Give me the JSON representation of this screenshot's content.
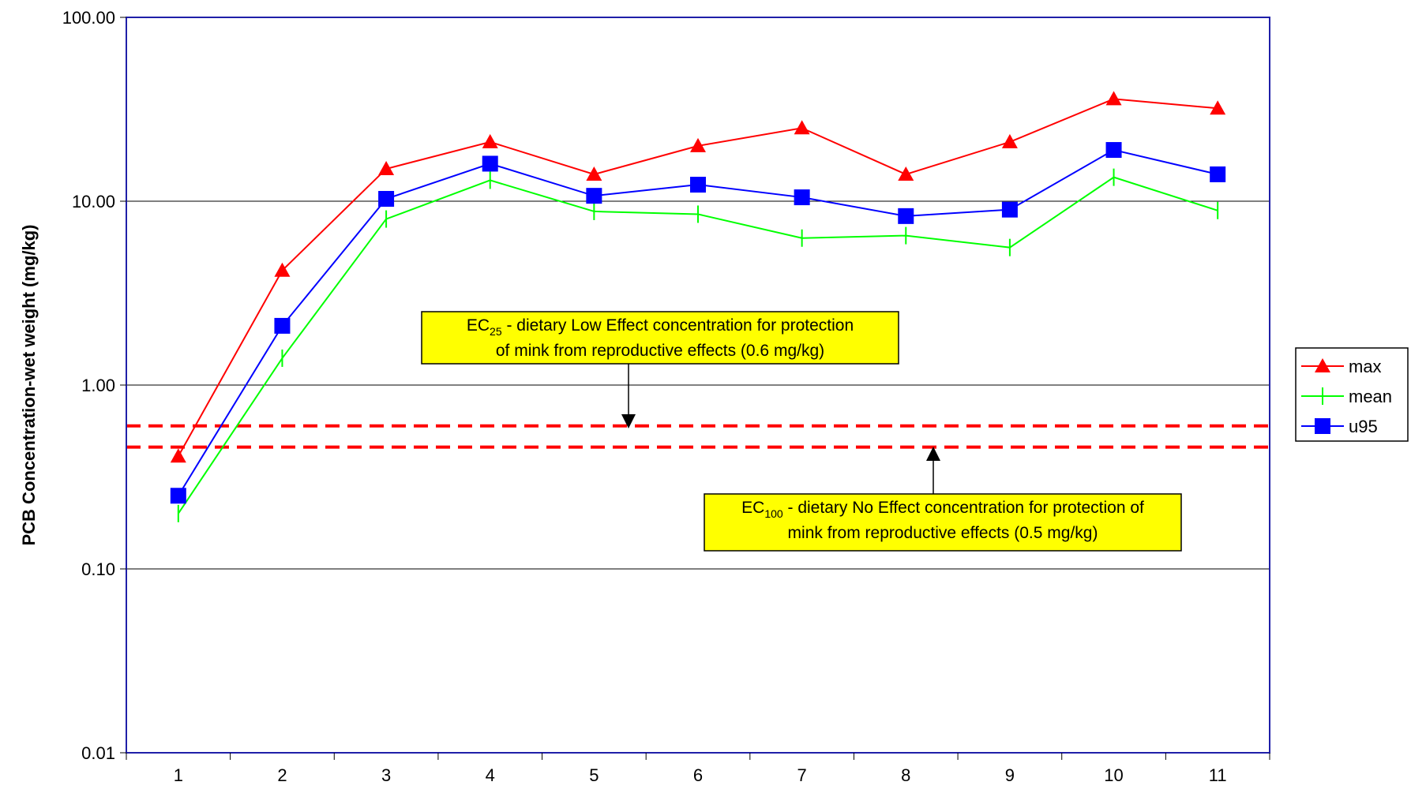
{
  "chart_data": {
    "type": "line",
    "title": "",
    "xlabel": "",
    "ylabel": "PCB Concentration-wet weight (mg/kg)",
    "y_scale": "log",
    "ylim": [
      0.01,
      100
    ],
    "y_ticks": [
      {
        "value": 0.01,
        "label": "0.01"
      },
      {
        "value": 0.1,
        "label": "0.10"
      },
      {
        "value": 1,
        "label": "1.00"
      },
      {
        "value": 10,
        "label": "10.00"
      },
      {
        "value": 100,
        "label": "100.00"
      }
    ],
    "categories": [
      "1",
      "2",
      "3",
      "4",
      "5",
      "6",
      "7",
      "8",
      "9",
      "10",
      "11"
    ],
    "grid": "horizontal",
    "legend_position": "right",
    "series": [
      {
        "name": "max",
        "color": "#ff0000",
        "marker": "triangle",
        "values": [
          0.41,
          4.2,
          15.0,
          21.0,
          14.0,
          20.0,
          25.0,
          14.0,
          21.0,
          36.0,
          32.0
        ]
      },
      {
        "name": "mean",
        "color": "#00ff00",
        "marker": "tick",
        "values": [
          0.2,
          1.4,
          8.0,
          13.0,
          8.8,
          8.5,
          6.3,
          6.5,
          5.6,
          13.5,
          8.9
        ]
      },
      {
        "name": "u95",
        "color": "#0000ff",
        "marker": "square",
        "values": [
          0.25,
          2.1,
          10.3,
          16.0,
          10.7,
          12.3,
          10.5,
          8.3,
          9.0,
          19.0,
          14.0
        ]
      }
    ],
    "reference_lines": [
      {
        "value": 0.6,
        "color": "#ff0000",
        "style": "dashed"
      },
      {
        "value": 0.46,
        "color": "#ff0000",
        "style": "dashed"
      }
    ],
    "annotations": [
      {
        "prefix": "EC",
        "subscript": "25",
        "line1_rest": " - dietary Low Effect concentration for protection",
        "line2": "of mink from reproductive effects (0.6 mg/kg)",
        "background": "#ffff00"
      },
      {
        "prefix": "EC",
        "subscript": "100",
        "line1_rest": " - dietary No Effect concentration for protection of",
        "line2": "mink from reproductive effects (0.5 mg/kg)",
        "background": "#ffff00"
      }
    ]
  }
}
